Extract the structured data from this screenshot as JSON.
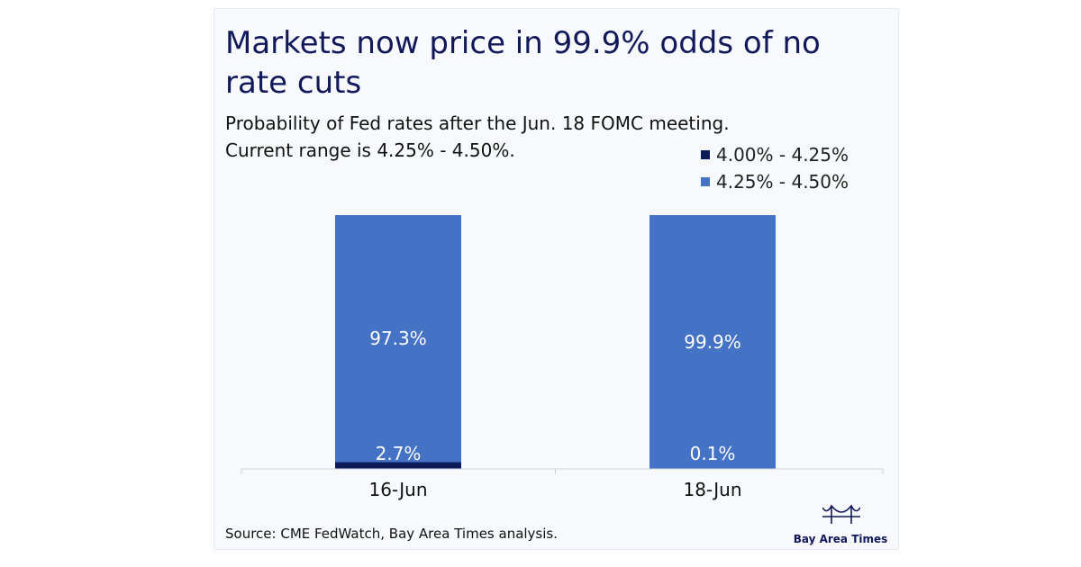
{
  "chart_data": {
    "type": "bar",
    "stacked": true,
    "title": "Markets now price in 99.9% odds of no rate cuts",
    "subtitle_lines": [
      "Probability of Fed rates after the Jun. 18 FOMC meeting.",
      "Current range is 4.25% - 4.50%."
    ],
    "categories": [
      "16-Jun",
      "18-Jun"
    ],
    "series": [
      {
        "name": "4.00% - 4.25%",
        "values": [
          2.7,
          0.1
        ],
        "labels": [
          "2.7%",
          "0.1%"
        ],
        "color": "#0d1a5b"
      },
      {
        "name": "4.25% - 4.50%",
        "values": [
          97.3,
          99.9
        ],
        "labels": [
          "97.3%",
          "99.9%"
        ],
        "color": "#4472c4"
      }
    ],
    "ylim": [
      0,
      100
    ],
    "grid": false,
    "legend_position": "top-right",
    "source": "Source: CME FedWatch, Bay Area Times analysis."
  },
  "brand": {
    "logo_text": "Bay Area Times",
    "logo_icon": "bridge-icon",
    "color": "#11195a"
  }
}
